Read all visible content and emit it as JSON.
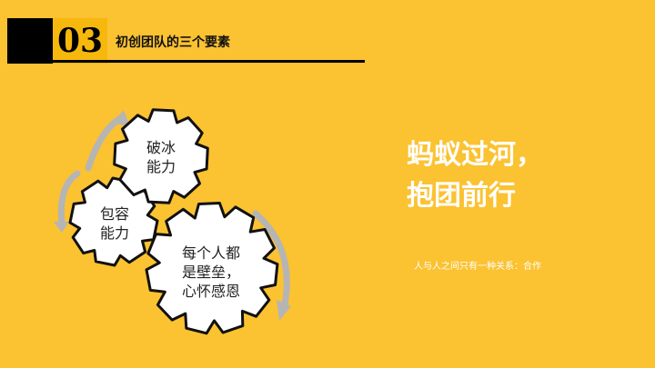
{
  "header": {
    "number": "03",
    "title": "初创团队的三个要素"
  },
  "gears": [
    {
      "lines": [
        "破冰",
        "能力"
      ]
    },
    {
      "lines": [
        "包容",
        "能力"
      ]
    },
    {
      "lines": [
        "每个人都",
        "是壁垒，",
        "心怀感恩"
      ]
    }
  ],
  "slogan": {
    "line1": "蚂蚁过河，",
    "line2": "抱团前行"
  },
  "subtitle": "人与人之间只有一种关系：合作",
  "colors": {
    "background": "#FBC231",
    "number_box": "#F6B80D",
    "gear_fill": "#FFFFFF",
    "gear_stroke": "#111111",
    "arrow": "#B5B5B5"
  }
}
